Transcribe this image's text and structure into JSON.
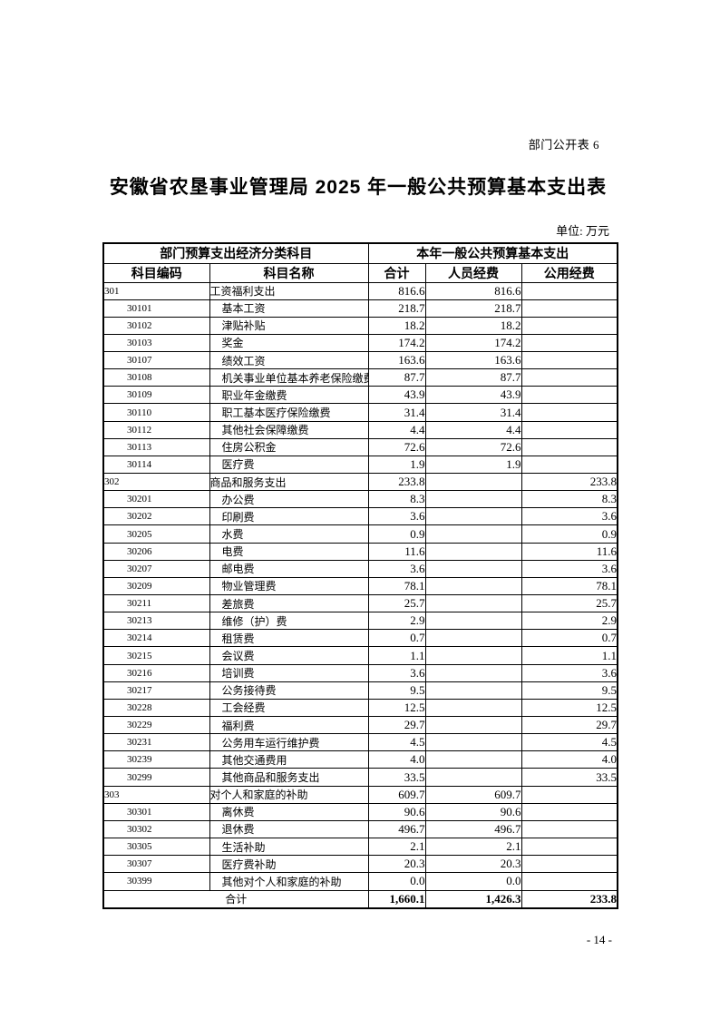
{
  "page": {
    "corner_label": "部门公开表 6",
    "title": "安徽省农垦事业管理局 2025 年一般公共预算基本支出表",
    "unit_label": "单位: 万元",
    "page_number": "- 14 -"
  },
  "colors": {
    "text": "#000000",
    "background": "#ffffff",
    "border": "#000000"
  },
  "table": {
    "header": {
      "group_left": "部门预算支出经济分类科目",
      "group_right": "本年一般公共预算基本支出",
      "col_code": "科目编码",
      "col_name": "科目名称",
      "col_total": "合计",
      "col_personnel": "人员经费",
      "col_public": "公用经费"
    },
    "rows": [
      {
        "level": 1,
        "code": "301",
        "name": "工资福利支出",
        "total": "816.6",
        "personnel": "816.6",
        "public": ""
      },
      {
        "level": 2,
        "code": "30101",
        "name": "基本工资",
        "total": "218.7",
        "personnel": "218.7",
        "public": ""
      },
      {
        "level": 2,
        "code": "30102",
        "name": "津贴补贴",
        "total": "18.2",
        "personnel": "18.2",
        "public": ""
      },
      {
        "level": 2,
        "code": "30103",
        "name": "奖金",
        "total": "174.2",
        "personnel": "174.2",
        "public": ""
      },
      {
        "level": 2,
        "code": "30107",
        "name": "绩效工资",
        "total": "163.6",
        "personnel": "163.6",
        "public": ""
      },
      {
        "level": 2,
        "code": "30108",
        "name": "机关事业单位基本养老保险缴费",
        "total": "87.7",
        "personnel": "87.7",
        "public": ""
      },
      {
        "level": 2,
        "code": "30109",
        "name": "职业年金缴费",
        "total": "43.9",
        "personnel": "43.9",
        "public": ""
      },
      {
        "level": 2,
        "code": "30110",
        "name": "职工基本医疗保险缴费",
        "total": "31.4",
        "personnel": "31.4",
        "public": ""
      },
      {
        "level": 2,
        "code": "30112",
        "name": "其他社会保障缴费",
        "total": "4.4",
        "personnel": "4.4",
        "public": ""
      },
      {
        "level": 2,
        "code": "30113",
        "name": "住房公积金",
        "total": "72.6",
        "personnel": "72.6",
        "public": ""
      },
      {
        "level": 2,
        "code": "30114",
        "name": "医疗费",
        "total": "1.9",
        "personnel": "1.9",
        "public": ""
      },
      {
        "level": 1,
        "code": "302",
        "name": "商品和服务支出",
        "total": "233.8",
        "personnel": "",
        "public": "233.8"
      },
      {
        "level": 2,
        "code": "30201",
        "name": "办公费",
        "total": "8.3",
        "personnel": "",
        "public": "8.3"
      },
      {
        "level": 2,
        "code": "30202",
        "name": "印刷费",
        "total": "3.6",
        "personnel": "",
        "public": "3.6"
      },
      {
        "level": 2,
        "code": "30205",
        "name": "水费",
        "total": "0.9",
        "personnel": "",
        "public": "0.9"
      },
      {
        "level": 2,
        "code": "30206",
        "name": "电费",
        "total": "11.6",
        "personnel": "",
        "public": "11.6"
      },
      {
        "level": 2,
        "code": "30207",
        "name": "邮电费",
        "total": "3.6",
        "personnel": "",
        "public": "3.6"
      },
      {
        "level": 2,
        "code": "30209",
        "name": "物业管理费",
        "total": "78.1",
        "personnel": "",
        "public": "78.1"
      },
      {
        "level": 2,
        "code": "30211",
        "name": "差旅费",
        "total": "25.7",
        "personnel": "",
        "public": "25.7"
      },
      {
        "level": 2,
        "code": "30213",
        "name": "维修（护）费",
        "total": "2.9",
        "personnel": "",
        "public": "2.9"
      },
      {
        "level": 2,
        "code": "30214",
        "name": "租赁费",
        "total": "0.7",
        "personnel": "",
        "public": "0.7"
      },
      {
        "level": 2,
        "code": "30215",
        "name": "会议费",
        "total": "1.1",
        "personnel": "",
        "public": "1.1"
      },
      {
        "level": 2,
        "code": "30216",
        "name": "培训费",
        "total": "3.6",
        "personnel": "",
        "public": "3.6"
      },
      {
        "level": 2,
        "code": "30217",
        "name": "公务接待费",
        "total": "9.5",
        "personnel": "",
        "public": "9.5"
      },
      {
        "level": 2,
        "code": "30228",
        "name": "工会经费",
        "total": "12.5",
        "personnel": "",
        "public": "12.5"
      },
      {
        "level": 2,
        "code": "30229",
        "name": "福利费",
        "total": "29.7",
        "personnel": "",
        "public": "29.7"
      },
      {
        "level": 2,
        "code": "30231",
        "name": "公务用车运行维护费",
        "total": "4.5",
        "personnel": "",
        "public": "4.5"
      },
      {
        "level": 2,
        "code": "30239",
        "name": "其他交通费用",
        "total": "4.0",
        "personnel": "",
        "public": "4.0"
      },
      {
        "level": 2,
        "code": "30299",
        "name": "其他商品和服务支出",
        "total": "33.5",
        "personnel": "",
        "public": "33.5"
      },
      {
        "level": 1,
        "code": "303",
        "name": "对个人和家庭的补助",
        "total": "609.7",
        "personnel": "609.7",
        "public": ""
      },
      {
        "level": 2,
        "code": "30301",
        "name": "离休费",
        "total": "90.6",
        "personnel": "90.6",
        "public": ""
      },
      {
        "level": 2,
        "code": "30302",
        "name": "退休费",
        "total": "496.7",
        "personnel": "496.7",
        "public": ""
      },
      {
        "level": 2,
        "code": "30305",
        "name": "生活补助",
        "total": "2.1",
        "personnel": "2.1",
        "public": ""
      },
      {
        "level": 2,
        "code": "30307",
        "name": "医疗费补助",
        "total": "20.3",
        "personnel": "20.3",
        "public": ""
      },
      {
        "level": 2,
        "code": "30399",
        "name": "其他对个人和家庭的补助",
        "total": "0.0",
        "personnel": "0.0",
        "public": ""
      }
    ],
    "total_row": {
      "label": "合计",
      "total": "1,660.1",
      "personnel": "1,426.3",
      "public": "233.8"
    }
  }
}
